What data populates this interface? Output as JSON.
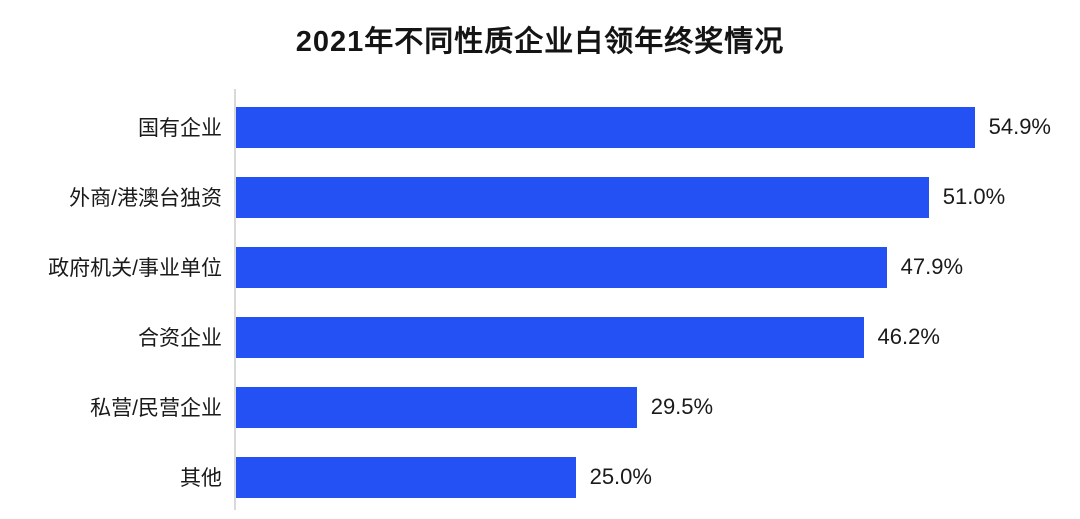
{
  "chart_data": {
    "type": "bar",
    "orientation": "horizontal",
    "title": "2021年不同性质企业白领年终奖情况",
    "categories": [
      "国有企业",
      "外商/港澳台独资",
      "政府机关/事业单位",
      "合资企业",
      "私营/民营企业",
      "其他"
    ],
    "values": [
      54.9,
      51.0,
      47.9,
      46.2,
      29.5,
      25.0
    ],
    "value_labels": [
      "54.9%",
      "51.0%",
      "47.9%",
      "46.2%",
      "29.5%",
      "25.0%"
    ],
    "xlabel": "",
    "ylabel": "",
    "xlim": [
      0,
      60
    ],
    "grid": "off",
    "legend": "none",
    "bar_color": "#2351f3",
    "axis_line_color": "#d9d9d9",
    "text_color": "#1a1a1a"
  }
}
